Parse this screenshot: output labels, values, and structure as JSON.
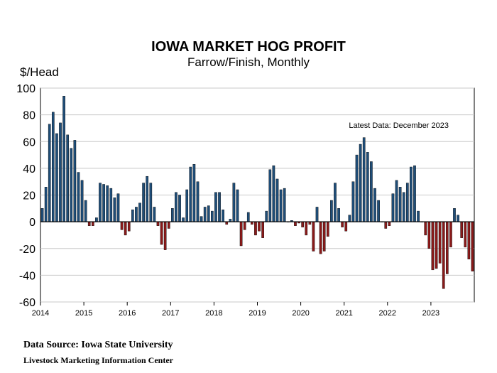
{
  "chart_data": {
    "type": "bar",
    "title": "IOWA MARKET HOG PROFIT",
    "subtitle": "Farrow/Finish, Monthly",
    "ylabel": "$/Head",
    "xlabel": "",
    "ylim": [
      -60,
      100
    ],
    "yticks": [
      100,
      80,
      60,
      40,
      20,
      0,
      -20,
      -40,
      -60
    ],
    "xtick_labels": [
      "2014",
      "2015",
      "2016",
      "2017",
      "2018",
      "2019",
      "2020",
      "2021",
      "2022",
      "2023"
    ],
    "annotation": "Latest Data:  December 2023",
    "positive_color": "#1f4e79",
    "negative_color": "#8b1a1a",
    "start": "2014-01",
    "months": [
      "2014-01",
      "2014-02",
      "2014-03",
      "2014-04",
      "2014-05",
      "2014-06",
      "2014-07",
      "2014-08",
      "2014-09",
      "2014-10",
      "2014-11",
      "2014-12",
      "2015-01",
      "2015-02",
      "2015-03",
      "2015-04",
      "2015-05",
      "2015-06",
      "2015-07",
      "2015-08",
      "2015-09",
      "2015-10",
      "2015-11",
      "2015-12",
      "2016-01",
      "2016-02",
      "2016-03",
      "2016-04",
      "2016-05",
      "2016-06",
      "2016-07",
      "2016-08",
      "2016-09",
      "2016-10",
      "2016-11",
      "2016-12",
      "2017-01",
      "2017-02",
      "2017-03",
      "2017-04",
      "2017-05",
      "2017-06",
      "2017-07",
      "2017-08",
      "2017-09",
      "2017-10",
      "2017-11",
      "2017-12",
      "2018-01",
      "2018-02",
      "2018-03",
      "2018-04",
      "2018-05",
      "2018-06",
      "2018-07",
      "2018-08",
      "2018-09",
      "2018-10",
      "2018-11",
      "2018-12",
      "2019-01",
      "2019-02",
      "2019-03",
      "2019-04",
      "2019-05",
      "2019-06",
      "2019-07",
      "2019-08",
      "2019-09",
      "2019-10",
      "2019-11",
      "2019-12",
      "2020-01",
      "2020-02",
      "2020-03",
      "2020-04",
      "2020-05",
      "2020-06",
      "2020-07",
      "2020-08",
      "2020-09",
      "2020-10",
      "2020-11",
      "2020-12",
      "2021-01",
      "2021-02",
      "2021-03",
      "2021-04",
      "2021-05",
      "2021-06",
      "2021-07",
      "2021-08",
      "2021-09",
      "2021-10",
      "2021-11",
      "2021-12",
      "2022-01",
      "2022-02",
      "2022-03",
      "2022-04",
      "2022-05",
      "2022-06",
      "2022-07",
      "2022-08",
      "2022-09",
      "2022-10",
      "2022-11",
      "2022-12",
      "2023-01",
      "2023-02",
      "2023-03",
      "2023-04",
      "2023-05",
      "2023-06",
      "2023-07",
      "2023-08",
      "2023-09",
      "2023-10",
      "2023-11",
      "2023-12"
    ],
    "values": [
      10,
      26,
      73,
      82,
      66,
      74,
      94,
      65,
      55,
      61,
      37,
      31,
      16,
      -3,
      -3,
      3,
      29,
      28,
      27,
      25,
      18,
      21,
      -6,
      -10,
      -7,
      9,
      11,
      14,
      29,
      34,
      29,
      11,
      -3,
      -17,
      -21,
      -5,
      10,
      22,
      20,
      3,
      24,
      41,
      43,
      30,
      4,
      11,
      12,
      8,
      22,
      22,
      9,
      -2,
      2,
      29,
      24,
      -18,
      -6,
      7,
      -2,
      -10,
      -7,
      -12,
      8,
      39,
      42,
      32,
      24,
      25,
      0,
      1,
      -3,
      -1,
      -4,
      -10,
      -2,
      -22,
      11,
      -24,
      -22,
      -11,
      16,
      29,
      10,
      -4,
      -7,
      5,
      30,
      50,
      58,
      63,
      52,
      45,
      25,
      16,
      0,
      -5,
      -3,
      21,
      31,
      26,
      22,
      29,
      41,
      42,
      8,
      0,
      -10,
      -20,
      -36,
      -35,
      -31,
      -50,
      -39,
      -19,
      10,
      5,
      -12,
      -19,
      -28,
      -37
    ]
  },
  "source": {
    "line1": "Data Source:  Iowa State University",
    "line2": "Livestock Marketing Information  Center"
  }
}
